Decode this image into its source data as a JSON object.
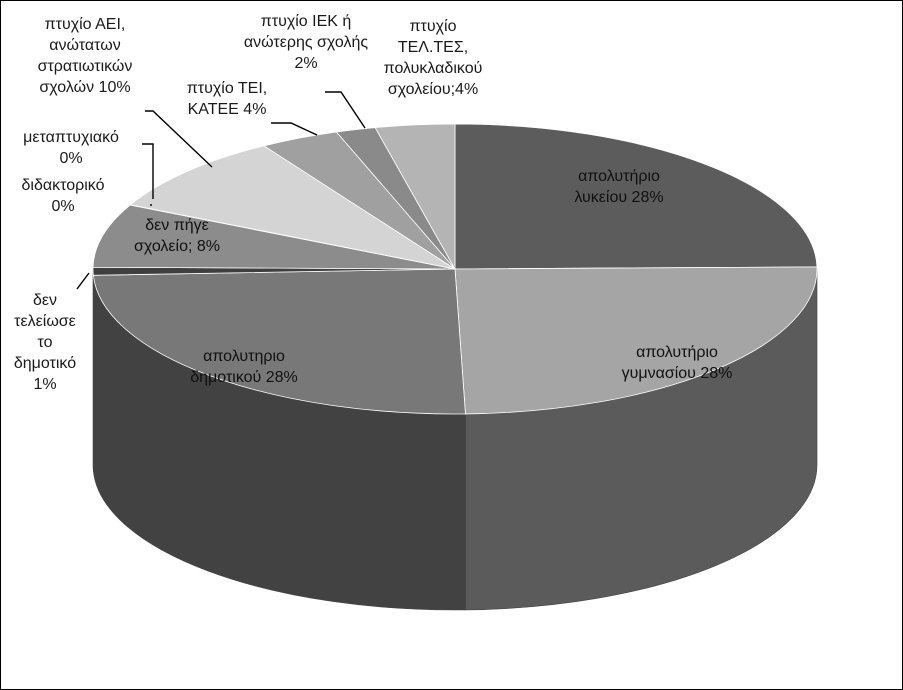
{
  "chart_data": {
    "type": "pie",
    "style": "3d",
    "title": "",
    "slices": [
      {
        "label": "απολυτήριο λυκείου 28%",
        "lines": [
          "απολυτήριο",
          "λυκείου 28%"
        ],
        "value": 28,
        "color": "#5c5c5c"
      },
      {
        "label": "απολυτήριο γυμνασίου 28%",
        "lines": [
          "απολυτήριο",
          "γυμνασίου 28%"
        ],
        "value": 28,
        "color": "#a5a5a5"
      },
      {
        "label": "απολυτηριο δημοτικού 28%",
        "lines": [
          "απολυτηριο",
          "δημοτικού 28%"
        ],
        "value": 28,
        "color": "#787878"
      },
      {
        "label": "δεν τελείωσε το δημοτικό 1%",
        "lines": [
          "δεν",
          "τελείωσε",
          "το",
          "δημοτικό",
          "1%"
        ],
        "value": 1,
        "color": "#3f3f3f"
      },
      {
        "label": "δεν πήγε σχολείο; 8%",
        "lines": [
          "δεν πήγε",
          "σχολείο; 8%"
        ],
        "value": 8,
        "color": "#8c8c8c"
      },
      {
        "label": "διδακτορικό 0%",
        "lines": [
          "διδακτορικό",
          "0%"
        ],
        "value": 0.02,
        "color": "#d0d0d0"
      },
      {
        "label": "μεταπτυχιακό 0%",
        "lines": [
          "μεταπτυχιακό",
          "0%"
        ],
        "value": 0.02,
        "color": "#b8b8b8"
      },
      {
        "label": "πτυχίο ΑΕΙ, ανώτατων στρατιωτικών σχολών 10%",
        "lines": [
          "πτυχίο ΑΕΙ,",
          "ανώτατων",
          "στρατιωτικών",
          "σχολών 10%"
        ],
        "value": 10,
        "color": "#d4d4d4"
      },
      {
        "label": "πτυχίο ΤΕΙ, ΚΑΤΕΕ 4%",
        "lines": [
          "πτυχίο ΤΕΙ,",
          "ΚΑΤΕΕ 4%"
        ],
        "value": 4,
        "color": "#a0a0a0"
      },
      {
        "label": "πτυχίο ΙΕΚ ή ανώτερης σχολής 2%",
        "lines": [
          "πτυχίο ΙΕΚ ή",
          "ανώτερης σχολής",
          "2%"
        ],
        "value": 2,
        "color": "#8a8a8a"
      },
      {
        "label": "πτυχίο ΤΕΛ.ΤΕΣ, πολυκλαδικού σχολείου;4%",
        "lines": [
          "πτυχίο",
          "ΤΕΛ.ΤΕΣ,",
          "πολυκλαδικού",
          "σχολείου;4%"
        ],
        "value": 4,
        "color": "#b4b4b4"
      }
    ],
    "legend": "none",
    "data_labels": "category and percent"
  }
}
